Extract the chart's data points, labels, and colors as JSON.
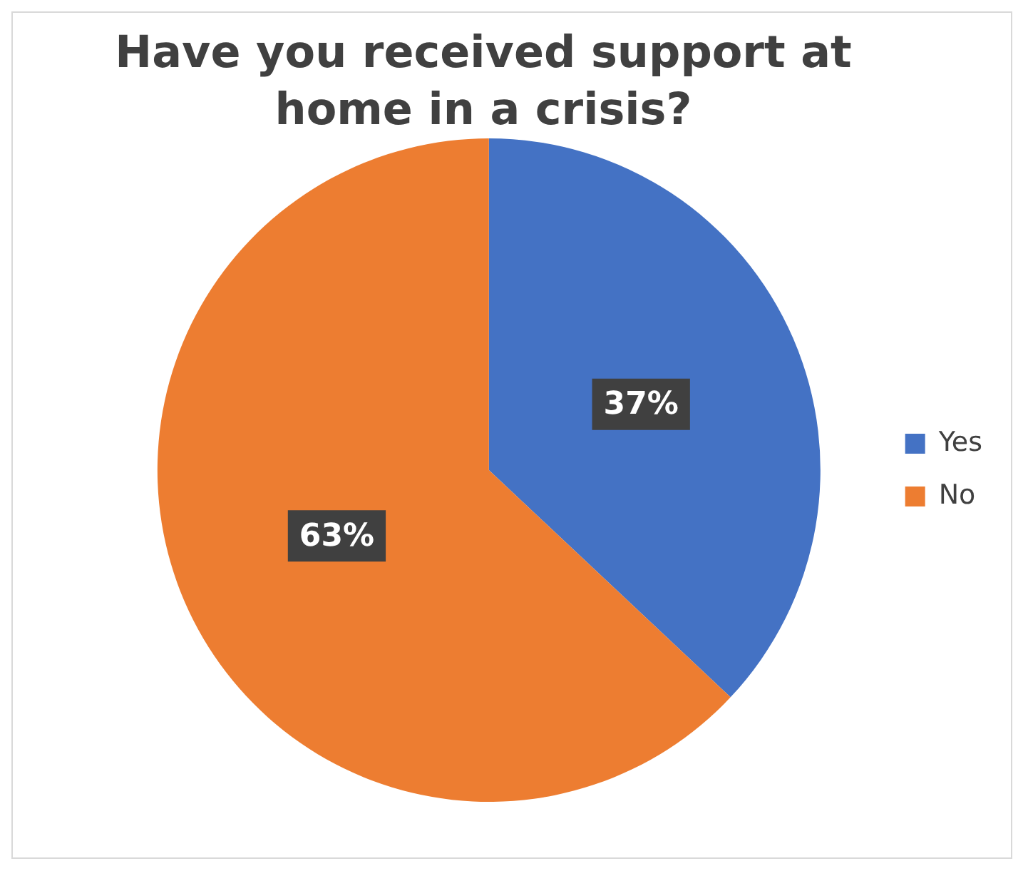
{
  "chart_data": {
    "type": "pie",
    "title": "Have you received support at home in a crisis?",
    "categories": [
      "Yes",
      "No"
    ],
    "values": [
      37,
      63
    ],
    "colors": [
      "#4472c4",
      "#ed7d31"
    ],
    "value_labels": [
      "37%",
      "63%"
    ],
    "legend": "right"
  }
}
